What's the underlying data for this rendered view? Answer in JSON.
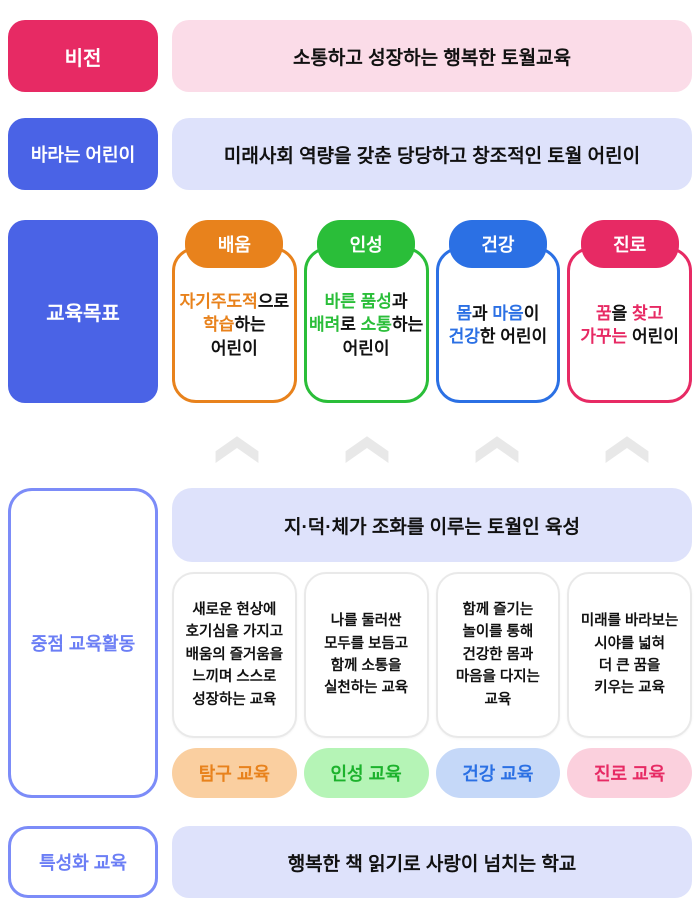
{
  "theme": {
    "pink": "#E72A64",
    "pink-light": "#FBDCE8",
    "pink-pill": "#FBD0DD",
    "indigo": "#4A63E6",
    "lavender": "#DEE2FB",
    "orange": "#E8821C",
    "orange-pill": "#FACFA0",
    "green": "#2ABE39",
    "green-text": "#1CB22C",
    "green-pill": "#B5F4B6",
    "blue": "#2B70E4",
    "blue-pill": "#C5D8F8",
    "peri-border": "#7C8CF8",
    "peri-text": "#6B7EF5",
    "chevron": "#E8E8E8",
    "card-border": "#E9E9E9",
    "ink": "#111111"
  },
  "vision": {
    "label": "비전",
    "text": "소통하고 성장하는 행복한 토월교육"
  },
  "desired_child": {
    "label": "바라는 어린이",
    "text": "미래사회 역량을 갖춘 당당하고 창조적인 토월 어린이"
  },
  "goals": {
    "label": "교육목표",
    "cards": [
      {
        "tag": "배움",
        "rich": [
          [
            {
              "t": "자기주도적",
              "c": "orange"
            },
            {
              "t": "으로"
            }
          ],
          [
            {
              "t": "학습",
              "c": "orange"
            },
            {
              "t": "하는"
            }
          ],
          [
            {
              "t": "어린이"
            }
          ]
        ]
      },
      {
        "tag": "인성",
        "rich": [
          [
            {
              "t": "바른 품성",
              "c": "green"
            },
            {
              "t": "과"
            }
          ],
          [
            {
              "t": "배려",
              "c": "green"
            },
            {
              "t": "로 "
            },
            {
              "t": "소통",
              "c": "green"
            },
            {
              "t": "하는"
            }
          ],
          [
            {
              "t": "어린이"
            }
          ]
        ]
      },
      {
        "tag": "건강",
        "rich": [
          [
            {
              "t": "몸",
              "c": "blue"
            },
            {
              "t": "과 "
            },
            {
              "t": "마음",
              "c": "blue"
            },
            {
              "t": "이"
            }
          ],
          [
            {
              "t": "건강",
              "c": "blue"
            },
            {
              "t": "한 어린이"
            }
          ]
        ]
      },
      {
        "tag": "진로",
        "rich": [
          [
            {
              "t": "꿈",
              "c": "pink"
            },
            {
              "t": "을 "
            },
            {
              "t": "찾고",
              "c": "pink"
            }
          ],
          [
            {
              "t": "가꾸는",
              "c": "pink"
            },
            {
              "t": " 어린이"
            }
          ]
        ]
      }
    ]
  },
  "focus": {
    "label": "중점 교육활동",
    "header": "지·덕·체가 조화를 이루는 토월인 육성",
    "cards": [
      {
        "text": "새로운 현상에\n호기심을 가지고\n배움의 즐거움을\n느끼며 스스로\n성장하는 교육",
        "pill": "탐구 교육"
      },
      {
        "text": "나를 둘러싼\n모두를 보듬고\n함께 소통을\n실천하는 교육",
        "pill": "인성 교육"
      },
      {
        "text": "함께 즐기는\n놀이를 통해\n건강한 몸과\n마음을 다지는\n교육",
        "pill": "건강 교육"
      },
      {
        "text": "미래를 바라보는\n시야를 넓혀\n더 큰 꿈을\n키우는 교육",
        "pill": "진로 교육"
      }
    ]
  },
  "special": {
    "label": "특성화 교육",
    "text": "행복한 책 읽기로 사랑이 넘치는 학교"
  }
}
